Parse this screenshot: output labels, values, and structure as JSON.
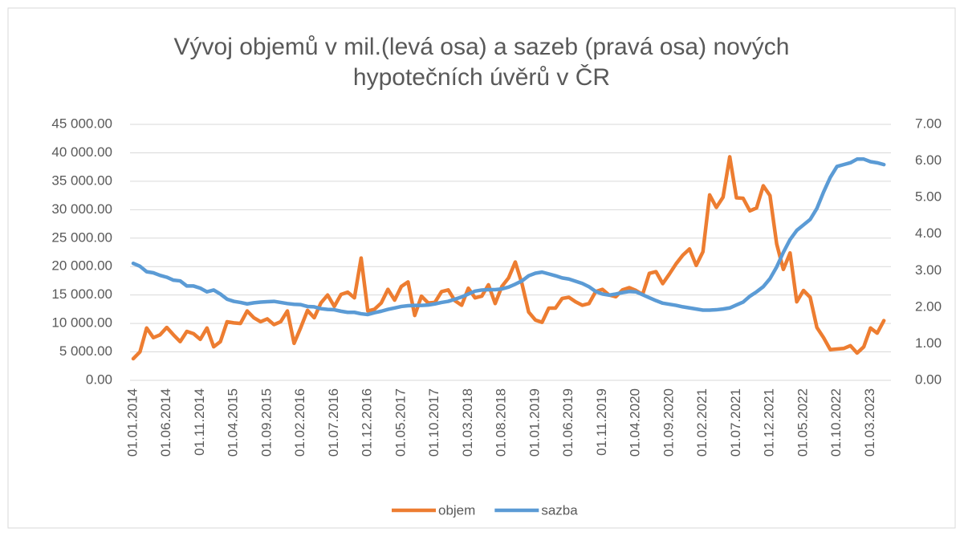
{
  "chart_data": {
    "type": "line",
    "title": "Vývoj objemů v mil.(levá osa) a sazeb (pravá osa) nových hypotečních úvěrů v ČR",
    "categories": [
      "01.01.2014",
      null,
      null,
      null,
      null,
      "01.06.2014",
      null,
      null,
      null,
      null,
      "01.11.2014",
      null,
      null,
      null,
      null,
      "01.04.2015",
      null,
      null,
      null,
      null,
      "01.09.2015",
      null,
      null,
      null,
      null,
      "01.02.2016",
      null,
      null,
      null,
      null,
      "01.07.2016",
      null,
      null,
      null,
      null,
      "01.12.2016",
      null,
      null,
      null,
      null,
      "01.05.2017",
      null,
      null,
      null,
      null,
      "01.10.2017",
      null,
      null,
      null,
      null,
      "01.03.2018",
      null,
      null,
      null,
      null,
      "01.08.2018",
      null,
      null,
      null,
      null,
      "01.01.2019",
      null,
      null,
      null,
      null,
      "01.06.2019",
      null,
      null,
      null,
      null,
      "01.11.2019",
      null,
      null,
      null,
      null,
      "01.04.2020",
      null,
      null,
      null,
      null,
      "01.09.2020",
      null,
      null,
      null,
      null,
      "01.02.2021",
      null,
      null,
      null,
      null,
      "01.07.2021",
      null,
      null,
      null,
      null,
      "01.12.2021",
      null,
      null,
      null,
      null,
      "01.05.2022",
      null,
      null,
      null,
      null,
      "01.10.2022",
      null,
      null,
      null,
      null,
      "01.03.2023",
      null,
      null
    ],
    "series": [
      {
        "name": "objem",
        "color": "#ed7d31",
        "axis": "y",
        "values": [
          3800,
          5000,
          9200,
          7500,
          8000,
          9300,
          8000,
          6800,
          8600,
          8200,
          7200,
          9200,
          5900,
          6800,
          10300,
          10100,
          10000,
          12200,
          11000,
          10300,
          10800,
          9800,
          10300,
          12200,
          6500,
          9300,
          12300,
          11000,
          13600,
          15000,
          13000,
          15100,
          15500,
          14500,
          21500,
          12200,
          12500,
          13600,
          16000,
          14100,
          16500,
          17300,
          11400,
          14800,
          13600,
          13700,
          15600,
          15900,
          14000,
          13200,
          16200,
          14500,
          14800,
          16800,
          13500,
          16500,
          18000,
          20800,
          17000,
          12000,
          10600,
          10200,
          12700,
          12700,
          14400,
          14600,
          13800,
          13200,
          13500,
          15600,
          16000,
          15000,
          14700,
          15900,
          16300,
          15800,
          15100,
          18800,
          19100,
          17000,
          18700,
          20500,
          22000,
          23100,
          20200,
          22600,
          32600,
          30400,
          32200,
          39300,
          32100,
          32000,
          29800,
          30300,
          34200,
          32500,
          24000,
          19500,
          22400,
          13800,
          15800,
          14600,
          9300,
          7500,
          5400,
          5500,
          5600,
          6100,
          4800,
          5900,
          9200,
          8300,
          10500
        ]
      },
      {
        "name": "sazba",
        "color": "#5b9bd5",
        "axis": "y2",
        "values": [
          3.2,
          3.12,
          2.97,
          2.94,
          2.87,
          2.82,
          2.74,
          2.72,
          2.58,
          2.58,
          2.52,
          2.42,
          2.47,
          2.36,
          2.22,
          2.16,
          2.13,
          2.09,
          2.12,
          2.14,
          2.15,
          2.16,
          2.13,
          2.1,
          2.08,
          2.07,
          2.02,
          2.01,
          1.96,
          1.94,
          1.93,
          1.89,
          1.86,
          1.86,
          1.82,
          1.8,
          1.85,
          1.89,
          1.94,
          1.98,
          2.02,
          2.04,
          2.05,
          2.05,
          2.06,
          2.09,
          2.13,
          2.16,
          2.22,
          2.28,
          2.36,
          2.44,
          2.47,
          2.48,
          2.48,
          2.5,
          2.55,
          2.63,
          2.72,
          2.86,
          2.93,
          2.96,
          2.91,
          2.86,
          2.8,
          2.77,
          2.71,
          2.65,
          2.56,
          2.43,
          2.36,
          2.33,
          2.36,
          2.4,
          2.43,
          2.42,
          2.34,
          2.26,
          2.18,
          2.11,
          2.08,
          2.05,
          2.01,
          1.98,
          1.95,
          1.92,
          1.92,
          1.93,
          1.95,
          1.98,
          2.06,
          2.14,
          2.3,
          2.42,
          2.56,
          2.78,
          3.1,
          3.5,
          3.85,
          4.1,
          4.25,
          4.4,
          4.7,
          5.15,
          5.55,
          5.85,
          5.9,
          5.95,
          6.05,
          6.05,
          5.98,
          5.95,
          5.9
        ]
      }
    ],
    "ylim": [
      0,
      45000
    ],
    "yticks": [
      {
        "value": 0,
        "label": "0.00"
      },
      {
        "value": 5000,
        "label": "5 000.00"
      },
      {
        "value": 10000,
        "label": "10 000.00"
      },
      {
        "value": 15000,
        "label": "15 000.00"
      },
      {
        "value": 20000,
        "label": "20 000.00"
      },
      {
        "value": 25000,
        "label": "25 000.00"
      },
      {
        "value": 30000,
        "label": "30 000.00"
      },
      {
        "value": 35000,
        "label": "35 000.00"
      },
      {
        "value": 40000,
        "label": "40 000.00"
      },
      {
        "value": 45000,
        "label": "45 000.00"
      }
    ],
    "y2lim": [
      0,
      7
    ],
    "y2ticks": [
      {
        "value": 0,
        "label": "0.00"
      },
      {
        "value": 1,
        "label": "1.00"
      },
      {
        "value": 2,
        "label": "2.00"
      },
      {
        "value": 3,
        "label": "3.00"
      },
      {
        "value": 4,
        "label": "4.00"
      },
      {
        "value": 5,
        "label": "5.00"
      },
      {
        "value": 6,
        "label": "6.00"
      },
      {
        "value": 7,
        "label": "7.00"
      }
    ],
    "grid": true,
    "legend": "bottom"
  }
}
